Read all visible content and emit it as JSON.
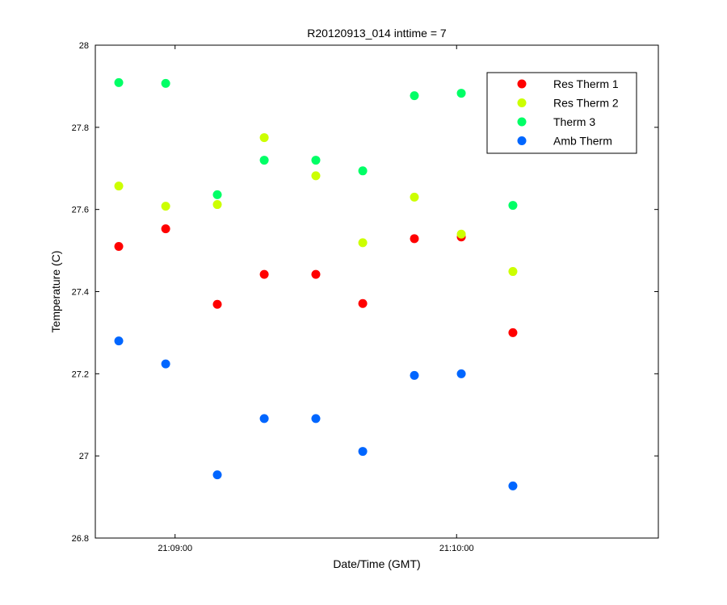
{
  "chart_data": {
    "type": "scatter",
    "title": "R20120913_014 inttime = 7",
    "xlabel": "Date/Time (GMT)",
    "ylabel": "Temperature (C)",
    "x_axis": {
      "type": "time",
      "range": [
        "21:08:43",
        "21:10:43"
      ],
      "ticks": [
        {
          "value": "21:09:00",
          "label": "21:09:00"
        },
        {
          "value": "21:10:00",
          "label": "21:10:00"
        }
      ]
    },
    "ylim": [
      26.8,
      28
    ],
    "yticks": [
      "26.8",
      "27",
      "27.2",
      "27.4",
      "27.6",
      "27.8",
      "28"
    ],
    "grid": false,
    "legend_position": "top-right",
    "x": [
      "21:08:48",
      "21:08:58",
      "21:09:09",
      "21:09:19",
      "21:09:30",
      "21:09:40",
      "21:09:51",
      "21:10:01",
      "21:10:12"
    ],
    "series": [
      {
        "name": "Res Therm 1",
        "color": "#ff0000",
        "values": [
          27.51,
          27.553,
          27.369,
          27.442,
          27.442,
          27.371,
          27.529,
          27.533,
          27.3
        ]
      },
      {
        "name": "Res Therm 2",
        "color": "#ccff00",
        "values": [
          27.657,
          27.608,
          27.612,
          27.775,
          27.682,
          27.519,
          27.63,
          27.54,
          27.449
        ]
      },
      {
        "name": "Therm 3",
        "color": "#00ff66",
        "values": [
          27.909,
          27.907,
          27.636,
          27.72,
          27.72,
          27.694,
          27.877,
          27.883,
          27.61
        ]
      },
      {
        "name": "Amb Therm",
        "color": "#0066ff",
        "values": [
          27.28,
          27.224,
          26.954,
          27.091,
          27.091,
          27.011,
          27.196,
          27.2,
          26.927
        ]
      }
    ]
  }
}
